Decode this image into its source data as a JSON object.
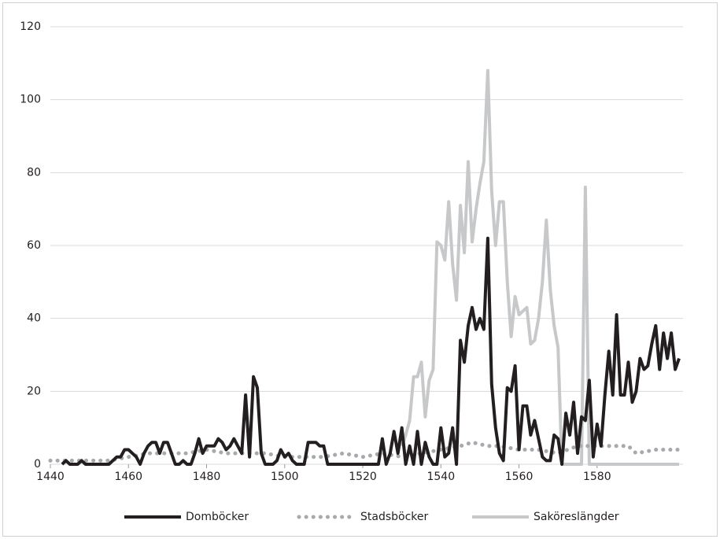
{
  "chart_data": {
    "type": "line",
    "xlim": [
      1440,
      1602
    ],
    "xticks": [
      1440,
      1460,
      1480,
      1500,
      1520,
      1540,
      1560,
      1580
    ],
    "ylim": [
      0,
      120
    ],
    "yticks": [
      0,
      20,
      40,
      60,
      80,
      100,
      120
    ],
    "grid": true,
    "legend": "bottom",
    "series": [
      {
        "name": "Domböcker",
        "color": "#231f20",
        "style": "solid",
        "x": [
          1443,
          1444,
          1445,
          1446,
          1447,
          1448,
          1449,
          1455,
          1456,
          1457,
          1458,
          1459,
          1460,
          1461,
          1462,
          1463,
          1464,
          1465,
          1466,
          1467,
          1468,
          1469,
          1470,
          1471,
          1472,
          1473,
          1474,
          1475,
          1476,
          1477,
          1478,
          1479,
          1480,
          1481,
          1482,
          1483,
          1484,
          1485,
          1486,
          1487,
          1488,
          1489,
          1490,
          1491,
          1492,
          1493,
          1494,
          1495,
          1496,
          1497,
          1498,
          1499,
          1500,
          1501,
          1502,
          1503,
          1504,
          1505,
          1506,
          1507,
          1508,
          1509,
          1510,
          1511,
          1524,
          1525,
          1526,
          1527,
          1528,
          1529,
          1530,
          1531,
          1532,
          1533,
          1534,
          1535,
          1536,
          1537,
          1538,
          1539,
          1540,
          1541,
          1542,
          1543,
          1544,
          1545,
          1546,
          1547,
          1548,
          1549,
          1550,
          1551,
          1552,
          1553,
          1554,
          1555,
          1556,
          1557,
          1558,
          1559,
          1560,
          1561,
          1562,
          1563,
          1564,
          1565,
          1566,
          1567,
          1568,
          1569,
          1570,
          1571,
          1572,
          1573,
          1574,
          1575,
          1576,
          1577,
          1578,
          1579,
          1580,
          1581,
          1582,
          1583,
          1584,
          1585,
          1586,
          1587,
          1588,
          1589,
          1590,
          1591,
          1592,
          1593,
          1594,
          1595,
          1596,
          1597,
          1598,
          1599,
          1600,
          1601
        ],
        "values": [
          0,
          1,
          0,
          0,
          0,
          1,
          0,
          0,
          1,
          2,
          2,
          4,
          4,
          3,
          2,
          0,
          3,
          5,
          6,
          6,
          3,
          6,
          6,
          3,
          0,
          0,
          1,
          0,
          0,
          3,
          7,
          3,
          5,
          5,
          5,
          7,
          6,
          4,
          5,
          7,
          5,
          3,
          19,
          2,
          24,
          21,
          3,
          0,
          0,
          0,
          1,
          4,
          2,
          3,
          1,
          0,
          0,
          0,
          6,
          6,
          6,
          5,
          5,
          0,
          0,
          7,
          0,
          3,
          9,
          3,
          10,
          0,
          5,
          0,
          9,
          0,
          6,
          2,
          0,
          0,
          10,
          2,
          3,
          10,
          0,
          34,
          28,
          38,
          43,
          37,
          40,
          37,
          62,
          22,
          10,
          3,
          1,
          21,
          20,
          27,
          4,
          16,
          16,
          8,
          12,
          7,
          2,
          1,
          1,
          8,
          7,
          0,
          14,
          8,
          17,
          3,
          13,
          12,
          23,
          2,
          11,
          5,
          19,
          31,
          19,
          41,
          19,
          19,
          28,
          17,
          20,
          29,
          26,
          27,
          33,
          38,
          26,
          36,
          29,
          36,
          26,
          29
        ]
      },
      {
        "name": "Stadsböcker",
        "color": "#a7a9ac",
        "style": "dotted",
        "x": [
          1440,
          1445,
          1450,
          1455,
          1460,
          1465,
          1470,
          1475,
          1480,
          1485,
          1490,
          1495,
          1500,
          1505,
          1510,
          1515,
          1520,
          1525,
          1530,
          1535,
          1540,
          1545,
          1548,
          1552,
          1555,
          1560,
          1565,
          1570,
          1575,
          1580,
          1585,
          1588,
          1590,
          1595,
          1601
        ],
        "values": [
          1,
          1,
          1,
          1,
          2,
          3,
          3,
          3,
          4,
          3,
          3,
          3,
          2,
          2,
          2,
          3,
          2,
          3,
          2,
          3,
          4,
          5,
          6,
          5,
          5,
          4,
          4,
          3,
          5,
          5,
          5,
          5,
          3,
          4,
          4
        ]
      },
      {
        "name": "Saköreslängder",
        "color": "#c7c8ca",
        "style": "solid",
        "x": [
          1530,
          1531,
          1532,
          1533,
          1534,
          1535,
          1536,
          1537,
          1538,
          1539,
          1540,
          1541,
          1542,
          1543,
          1544,
          1545,
          1546,
          1547,
          1548,
          1549,
          1550,
          1551,
          1552,
          1553,
          1554,
          1555,
          1556,
          1557,
          1558,
          1559,
          1560,
          1561,
          1562,
          1563,
          1564,
          1565,
          1566,
          1567,
          1568,
          1569,
          1570,
          1571,
          1576,
          1577,
          1578,
          1601
        ],
        "values": [
          5,
          8,
          12,
          24,
          24,
          28,
          13,
          23,
          26,
          61,
          60,
          56,
          72,
          55,
          45,
          71,
          58,
          83,
          61,
          70,
          77,
          83,
          108,
          75,
          60,
          72,
          72,
          50,
          35,
          46,
          41,
          42,
          43,
          33,
          34,
          40,
          50,
          67,
          48,
          38,
          32,
          0,
          0,
          76,
          0,
          0
        ]
      }
    ]
  }
}
